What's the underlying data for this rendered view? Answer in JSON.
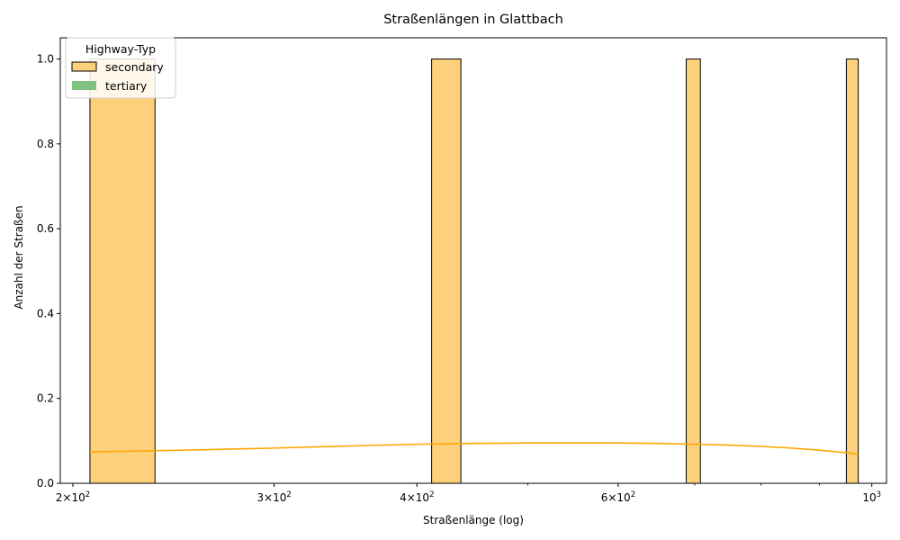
{
  "chart_data": {
    "type": "histogram",
    "title": "Straßenlängen in Glattbach",
    "xlabel": "Straßenlänge (log)",
    "ylabel": "Anzahl der Straßen",
    "x_scale": "log",
    "xlim": [
      195,
      1030
    ],
    "ylim": [
      0,
      1.05
    ],
    "x_ticks": [
      {
        "value": 200,
        "base": "2×10",
        "exp": "2"
      },
      {
        "value": 300,
        "base": "3×10",
        "exp": "2"
      },
      {
        "value": 400,
        "base": "4×10",
        "exp": "2"
      },
      {
        "value": 600,
        "base": "6×10",
        "exp": "2"
      },
      {
        "value": 1000,
        "base": "10",
        "exp": "3"
      }
    ],
    "x_minor_ticks": [
      500,
      700,
      800,
      900
    ],
    "y_ticks": [
      "0.0",
      "0.2",
      "0.4",
      "0.6",
      "0.8",
      "1.0"
    ],
    "y_tick_values": [
      0,
      0.2,
      0.4,
      0.6,
      0.8,
      1.0
    ],
    "grid": false,
    "legend": {
      "title": "Highway-Typ",
      "placement": "top-left",
      "entries": [
        {
          "name": "secondary",
          "color": "#fdd17c",
          "edge": "#000000"
        },
        {
          "name": "tertiary",
          "color": "#80c080",
          "edge": "none"
        }
      ]
    },
    "series": [
      {
        "name": "secondary",
        "color": "#fdd17c",
        "edge": "#000000",
        "bins": [
          {
            "x0": 207,
            "x1": 236,
            "count": 1
          },
          {
            "x0": 412,
            "x1": 437,
            "count": 1
          },
          {
            "x0": 688,
            "x1": 708,
            "count": 1
          },
          {
            "x0": 950,
            "x1": 973,
            "count": 1
          }
        ]
      }
    ],
    "kde": {
      "color": "#ffa500",
      "x": [
        207,
        250,
        300,
        350,
        400,
        450,
        500,
        550,
        600,
        650,
        700,
        750,
        800,
        850,
        900,
        950,
        973
      ],
      "y": [
        0.074,
        0.078,
        0.083,
        0.088,
        0.092,
        0.094,
        0.095,
        0.095,
        0.095,
        0.094,
        0.092,
        0.09,
        0.087,
        0.083,
        0.078,
        0.072,
        0.069
      ]
    }
  }
}
